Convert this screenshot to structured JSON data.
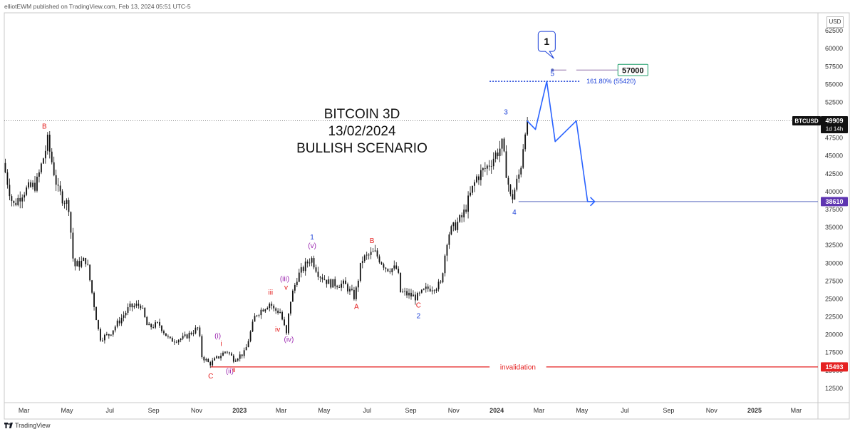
{
  "publisher_line": "elliotEWM published on TradingView.com, Feb 13, 2024 05:51 UTC-5",
  "footer_brand": "TradingView",
  "currency_label": "USD",
  "chart_data": {
    "type": "candlestick",
    "symbol": "BTCUSD",
    "title_lines": [
      "BITCOIN 3D",
      "13/02/2024",
      "BULLISH  SCENARIO"
    ],
    "y_ticks": [
      12500,
      15000,
      17500,
      20000,
      22500,
      25000,
      27500,
      30000,
      32500,
      35000,
      37500,
      40000,
      42500,
      45000,
      47500,
      50000,
      52500,
      55000,
      57500,
      60000,
      62500
    ],
    "ylim": [
      10500,
      65000
    ],
    "x_ticks": [
      "Mar",
      "May",
      "Jul",
      "Sep",
      "Nov",
      "2023",
      "Mar",
      "May",
      "Jul",
      "Sep",
      "Nov",
      "2024",
      "Mar",
      "May",
      "Jul",
      "Sep",
      "Nov",
      "2025",
      "Mar"
    ],
    "x_tick_dates": [
      "2022-03-01",
      "2022-05-01",
      "2022-07-01",
      "2022-09-01",
      "2022-11-01",
      "2023-01-01",
      "2023-03-01",
      "2023-05-01",
      "2023-07-01",
      "2023-09-01",
      "2023-11-01",
      "2024-01-01",
      "2024-03-01",
      "2024-05-01",
      "2024-07-01",
      "2024-09-01",
      "2024-11-01",
      "2025-01-01",
      "2025-03-01"
    ],
    "xlim": [
      "2022-02-01",
      "2025-04-01"
    ],
    "price_path": [
      [
        "2022-02-01",
        44000
      ],
      [
        "2022-02-15",
        38000
      ],
      [
        "2022-03-01",
        40000
      ],
      [
        "2022-03-20",
        41000
      ],
      [
        "2022-04-05",
        47000
      ],
      [
        "2022-04-20",
        40000
      ],
      [
        "2022-05-05",
        38000
      ],
      [
        "2022-05-12",
        29500
      ],
      [
        "2022-05-30",
        30500
      ],
      [
        "2022-06-12",
        23000
      ],
      [
        "2022-06-18",
        19500
      ],
      [
        "2022-07-01",
        20000
      ],
      [
        "2022-07-20",
        22500
      ],
      [
        "2022-07-30",
        23800
      ],
      [
        "2022-08-15",
        24200
      ],
      [
        "2022-08-25",
        21000
      ],
      [
        "2022-09-10",
        21500
      ],
      [
        "2022-09-25",
        19200
      ],
      [
        "2022-10-15",
        19500
      ],
      [
        "2022-11-05",
        21000
      ],
      [
        "2022-11-10",
        17000
      ],
      [
        "2022-11-21",
        15900
      ],
      [
        "2022-12-05",
        17000
      ],
      [
        "2022-12-15",
        17800
      ],
      [
        "2022-12-25",
        16600
      ],
      [
        "2023-01-10",
        17500
      ],
      [
        "2023-01-25",
        22800
      ],
      [
        "2023-02-15",
        24500
      ],
      [
        "2023-02-20",
        23500
      ],
      [
        "2023-03-01",
        23200
      ],
      [
        "2023-03-10",
        20000
      ],
      [
        "2023-03-15",
        24500
      ],
      [
        "2023-03-25",
        28000
      ],
      [
        "2023-04-14",
        30800
      ],
      [
        "2023-04-25",
        28500
      ],
      [
        "2023-05-10",
        27200
      ],
      [
        "2023-06-01",
        27000
      ],
      [
        "2023-06-15",
        25200
      ],
      [
        "2023-06-25",
        30500
      ],
      [
        "2023-07-13",
        31500
      ],
      [
        "2023-07-30",
        29300
      ],
      [
        "2023-08-15",
        29200
      ],
      [
        "2023-08-18",
        26000
      ],
      [
        "2023-09-11",
        25200
      ],
      [
        "2023-09-25",
        26400
      ],
      [
        "2023-10-15",
        27000
      ],
      [
        "2023-10-25",
        34000
      ],
      [
        "2023-11-15",
        36500
      ],
      [
        "2023-12-05",
        42000
      ],
      [
        "2023-12-20",
        43500
      ],
      [
        "2024-01-10",
        46500
      ],
      [
        "2024-01-23",
        38600
      ],
      [
        "2024-02-05",
        43000
      ],
      [
        "2024-02-13",
        49900
      ]
    ],
    "scenario_path": [
      [
        "2024-02-13",
        49909
      ],
      [
        "2024-02-25",
        48700
      ],
      [
        "2024-03-12",
        55420
      ],
      [
        "2024-03-24",
        47000
      ],
      [
        "2024-04-23",
        49900
      ],
      [
        "2024-05-09",
        38610
      ],
      [
        "2024-05-19",
        38610
      ]
    ],
    "current_price": {
      "label": "BTCUSD",
      "value": "49909",
      "countdown": "1d 14h",
      "price": 49909
    },
    "fib_level": {
      "text": "161.80% (55420)",
      "price": 55420
    },
    "target": {
      "label": "57000",
      "price": 57000
    },
    "support_level": {
      "label": "38610",
      "price": 38610
    },
    "invalidation": {
      "label": "invalidation",
      "value": "15493",
      "price": 15493
    },
    "wave_labels": [
      {
        "text": "B",
        "date": "2022-03-30",
        "price": 48800,
        "color": "#e52222"
      },
      {
        "text": "C",
        "date": "2022-11-21",
        "price": 13900,
        "color": "#e52222"
      },
      {
        "text": "(i)",
        "date": "2022-12-01",
        "price": 19500,
        "color": "#9c27b0"
      },
      {
        "text": "i",
        "date": "2022-12-06",
        "price": 18400,
        "color": "#e52222"
      },
      {
        "text": "(ii)",
        "date": "2022-12-18",
        "price": 14600,
        "color": "#9c27b0"
      },
      {
        "text": "ii",
        "date": "2022-12-24",
        "price": 14800,
        "color": "#e52222"
      },
      {
        "text": "iii",
        "date": "2023-02-14",
        "price": 25600,
        "color": "#e52222"
      },
      {
        "text": "(iii)",
        "date": "2023-03-06",
        "price": 27500,
        "color": "#9c27b0"
      },
      {
        "text": "v",
        "date": "2023-03-08",
        "price": 26300,
        "color": "#e52222"
      },
      {
        "text": "iv",
        "date": "2023-02-24",
        "price": 20400,
        "color": "#e52222"
      },
      {
        "text": "(iv)",
        "date": "2023-03-12",
        "price": 19000,
        "color": "#9c27b0"
      },
      {
        "text": "1",
        "date": "2023-04-14",
        "price": 33300,
        "color": "#1a3fd8"
      },
      {
        "text": "(v)",
        "date": "2023-04-14",
        "price": 32100,
        "color": "#9c27b0"
      },
      {
        "text": "B",
        "date": "2023-07-08",
        "price": 32800,
        "color": "#e52222"
      },
      {
        "text": "A",
        "date": "2023-06-16",
        "price": 23600,
        "color": "#e52222"
      },
      {
        "text": "C",
        "date": "2023-09-12",
        "price": 23800,
        "color": "#e52222"
      },
      {
        "text": "2",
        "date": "2023-09-12",
        "price": 22300,
        "color": "#1a3fd8"
      },
      {
        "text": "3",
        "date": "2024-01-14",
        "price": 50800,
        "color": "#1a3fd8"
      },
      {
        "text": "4",
        "date": "2024-01-26",
        "price": 36800,
        "color": "#1a3fd8"
      },
      {
        "text": "5",
        "date": "2024-03-20",
        "price": 56200,
        "color": "#1a3fd8"
      }
    ],
    "degree_callout": {
      "text": "1",
      "date": "2024-03-12",
      "price": 61000
    }
  }
}
